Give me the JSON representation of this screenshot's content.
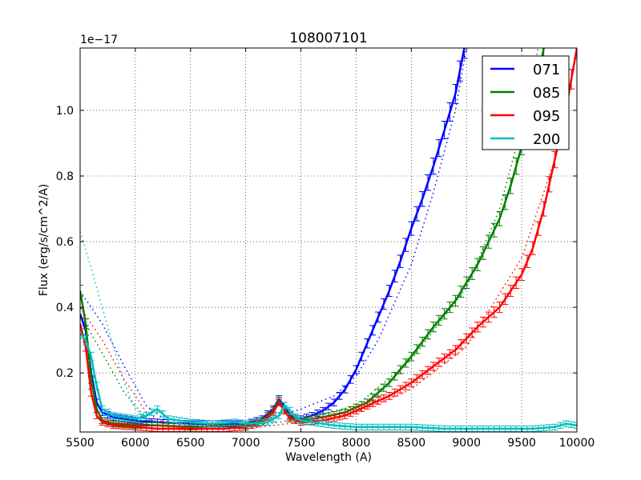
{
  "chart_data": {
    "type": "line",
    "title": "108007101",
    "xlabel": "Wavelength (A)",
    "ylabel": "Flux (erg/s/cm^2/A)",
    "y_offset_label": "1e−17",
    "xlim": [
      5500,
      10000
    ],
    "ylim": [
      0.02,
      1.19
    ],
    "xticks": [
      5500,
      6000,
      6500,
      7000,
      7500,
      8000,
      8500,
      9000,
      9500,
      10000
    ],
    "xtick_labels": [
      "5500",
      "6000",
      "6500",
      "7000",
      "7500",
      "8000",
      "8500",
      "9000",
      "9500",
      "10000"
    ],
    "yticks": [
      0.2,
      0.4,
      0.6,
      0.8,
      1.0
    ],
    "ytick_labels": [
      "0.2",
      "0.4",
      "0.6",
      "0.8",
      "1.0"
    ],
    "grid": true,
    "legend_position": "upper right",
    "series": [
      {
        "name": "071",
        "color": "#0000ff",
        "x": [
          5500,
          5550,
          5600,
          5650,
          5700,
          5800,
          6000,
          6200,
          6500,
          6800,
          7000,
          7150,
          7250,
          7300,
          7350,
          7400,
          7500,
          7600,
          7700,
          7800,
          7900,
          8000,
          8100,
          8200,
          8300,
          8400,
          8500,
          8600,
          8700,
          8800,
          8900,
          8980
        ],
        "y": [
          0.38,
          0.33,
          0.2,
          0.11,
          0.08,
          0.065,
          0.055,
          0.05,
          0.045,
          0.045,
          0.045,
          0.06,
          0.09,
          0.12,
          0.1,
          0.07,
          0.06,
          0.07,
          0.085,
          0.11,
          0.15,
          0.21,
          0.29,
          0.37,
          0.45,
          0.54,
          0.64,
          0.73,
          0.83,
          0.94,
          1.05,
          1.19
        ],
        "fit_x": [
          5500,
          5700,
          5900,
          6100,
          6300,
          6500,
          7000,
          7500,
          7800,
          8000,
          8200,
          8500,
          8700,
          8900,
          9000
        ],
        "fit_y": [
          0.45,
          0.35,
          0.22,
          0.1,
          0.05,
          0.04,
          0.04,
          0.09,
          0.13,
          0.19,
          0.3,
          0.53,
          0.75,
          1.0,
          1.19
        ]
      },
      {
        "name": "085",
        "color": "#008000",
        "x": [
          5500,
          5550,
          5600,
          5650,
          5700,
          5800,
          6000,
          6200,
          6500,
          6800,
          7000,
          7150,
          7250,
          7300,
          7350,
          7400,
          7500,
          7700,
          7900,
          8100,
          8300,
          8500,
          8700,
          8900,
          9100,
          9300,
          9400,
          9500,
          9600,
          9700
        ],
        "y": [
          0.45,
          0.35,
          0.18,
          0.09,
          0.055,
          0.045,
          0.04,
          0.04,
          0.035,
          0.04,
          0.04,
          0.055,
          0.085,
          0.115,
          0.09,
          0.065,
          0.055,
          0.065,
          0.08,
          0.11,
          0.17,
          0.25,
          0.34,
          0.42,
          0.53,
          0.67,
          0.77,
          0.89,
          1.02,
          1.19
        ],
        "fit_x": [
          5500,
          5700,
          5900,
          6100,
          6300,
          6500,
          7000,
          7500,
          8000,
          8500,
          9000,
          9300,
          9500,
          9650
        ],
        "fit_y": [
          0.38,
          0.26,
          0.14,
          0.06,
          0.04,
          0.035,
          0.035,
          0.06,
          0.1,
          0.24,
          0.46,
          0.7,
          0.95,
          1.19
        ]
      },
      {
        "name": "095",
        "color": "#ff0000",
        "x": [
          5500,
          5550,
          5600,
          5650,
          5700,
          5800,
          6000,
          6200,
          6500,
          6800,
          7000,
          7150,
          7250,
          7300,
          7350,
          7400,
          7500,
          7700,
          7900,
          8100,
          8300,
          8500,
          8700,
          8900,
          9100,
          9300,
          9500,
          9600,
          9700,
          9800,
          9900,
          10000
        ],
        "y": [
          0.35,
          0.28,
          0.14,
          0.07,
          0.05,
          0.04,
          0.035,
          0.03,
          0.03,
          0.03,
          0.035,
          0.05,
          0.08,
          0.11,
          0.085,
          0.06,
          0.05,
          0.055,
          0.07,
          0.1,
          0.13,
          0.17,
          0.22,
          0.27,
          0.34,
          0.4,
          0.5,
          0.58,
          0.7,
          0.85,
          1.0,
          1.19
        ],
        "fit_x": [
          5500,
          5700,
          5900,
          6100,
          6300,
          6500,
          7000,
          7500,
          8000,
          8500,
          9000,
          9500,
          9800,
          10000
        ],
        "fit_y": [
          0.4,
          0.3,
          0.18,
          0.08,
          0.04,
          0.03,
          0.03,
          0.05,
          0.08,
          0.15,
          0.28,
          0.55,
          0.85,
          1.19
        ]
      },
      {
        "name": "200",
        "color": "#00bfbf",
        "x": [
          5500,
          5550,
          5600,
          5650,
          5700,
          5800,
          5900,
          6000,
          6100,
          6200,
          6300,
          6500,
          6700,
          6900,
          7000,
          7200,
          7300,
          7350,
          7400,
          7450,
          7500,
          7600,
          7800,
          8000,
          8200,
          8500,
          8800,
          9000,
          9300,
          9600,
          9800,
          9900,
          10000
        ],
        "y": [
          0.32,
          0.3,
          0.25,
          0.16,
          0.09,
          0.07,
          0.065,
          0.06,
          0.07,
          0.09,
          0.06,
          0.05,
          0.045,
          0.05,
          0.045,
          0.05,
          0.07,
          0.1,
          0.085,
          0.065,
          0.055,
          0.05,
          0.04,
          0.035,
          0.035,
          0.035,
          0.03,
          0.03,
          0.03,
          0.03,
          0.035,
          0.045,
          0.04
        ],
        "fit_x": [
          5500,
          5600,
          5700,
          5800,
          5900,
          6000,
          6100,
          6200
        ],
        "fit_y": [
          0.63,
          0.52,
          0.4,
          0.28,
          0.17,
          0.09,
          0.06,
          0.05
        ]
      }
    ]
  }
}
